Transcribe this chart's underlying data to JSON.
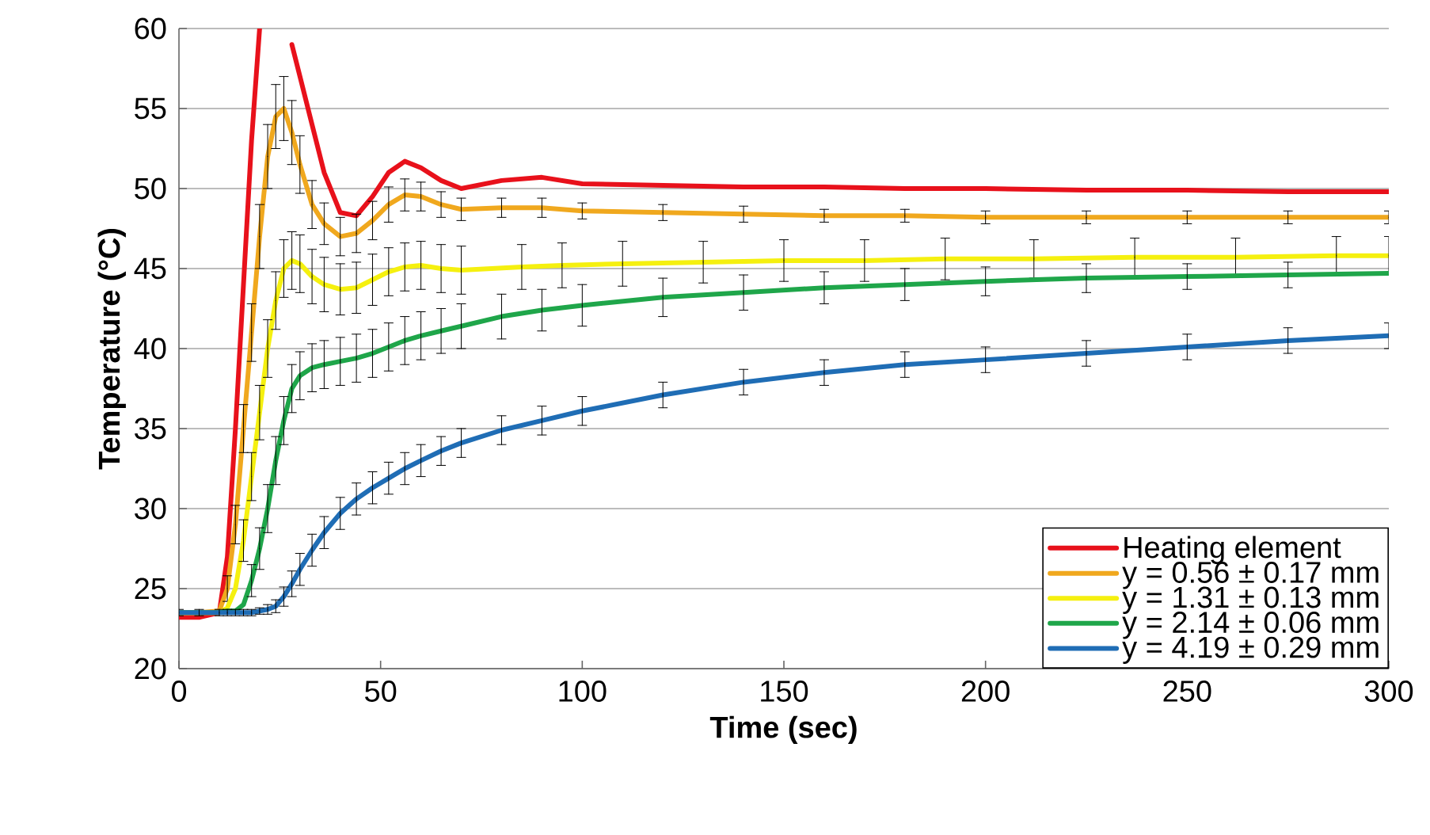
{
  "chart_data": {
    "type": "line",
    "xlabel": "Time (sec)",
    "ylabel": "Temperature (°C)",
    "x": [
      0,
      5,
      10,
      12,
      14,
      16,
      18,
      20,
      22,
      24,
      26,
      28,
      30,
      33,
      36,
      40,
      44,
      48,
      52,
      56,
      60,
      65,
      70,
      80,
      90,
      100,
      120,
      140,
      160,
      180,
      200,
      225,
      250,
      275,
      300
    ],
    "xlim": [
      0,
      300
    ],
    "xticks": [
      0,
      50,
      100,
      150,
      200,
      250,
      300
    ],
    "ylim": [
      20,
      60
    ],
    "yticks": [
      20,
      25,
      30,
      35,
      40,
      45,
      50,
      55,
      60
    ],
    "grid": "y",
    "legend": "bottom right",
    "marker": "none",
    "line_style": "solid",
    "series": [
      {
        "name": "Heating element",
        "color": "#e8111b",
        "values": [
          23.2,
          23.2,
          23.5,
          27,
          35,
          44,
          53,
          60,
          null,
          null,
          null,
          59,
          57,
          54,
          51,
          48.5,
          48.3,
          49.5,
          51,
          51.7,
          51.3,
          50.5,
          50,
          50.5,
          50.7,
          50.3,
          50.2,
          50.1,
          50.1,
          50,
          50,
          49.9,
          49.9,
          49.8,
          49.8
        ]
      },
      {
        "name": "y = 0.56 ± 0.17 mm",
        "color": "#f0a81e",
        "values": [
          23.5,
          23.5,
          23.6,
          25,
          29,
          35,
          41,
          47,
          52,
          54.5,
          55,
          53.5,
          51.5,
          49,
          47.8,
          47,
          47.2,
          48,
          49,
          49.6,
          49.5,
          49,
          48.7,
          48.8,
          48.8,
          48.6,
          48.5,
          48.4,
          48.3,
          48.3,
          48.2,
          48.2,
          48.2,
          48.2,
          48.2
        ],
        "errors": [
          null,
          null,
          null,
          0.8,
          1.2,
          1.5,
          1.8,
          2,
          2,
          2,
          2,
          2,
          1.8,
          1.5,
          1.3,
          1.2,
          1.2,
          1.2,
          1.1,
          1,
          0.9,
          0.8,
          0.7,
          0.6,
          0.6,
          0.5,
          0.5,
          0.5,
          0.4,
          0.4,
          0.4,
          0.4,
          0.4,
          0.4,
          0.4
        ]
      },
      {
        "name": "y = 1.31 ± 0.13 mm",
        "color": "#f5f00f",
        "x": [
          0,
          5,
          10,
          12,
          14,
          16,
          18,
          20,
          22,
          24,
          26,
          28,
          30,
          33,
          36,
          40,
          44,
          48,
          52,
          56,
          60,
          65,
          70,
          85,
          95,
          110,
          130,
          150,
          170,
          190,
          212,
          237,
          262,
          287,
          300
        ],
        "values": [
          23.5,
          23.5,
          23.5,
          23.8,
          25,
          28,
          32,
          36,
          40,
          43,
          45,
          45.5,
          45.3,
          44.5,
          44,
          43.7,
          43.8,
          44.3,
          44.8,
          45.1,
          45.2,
          45,
          44.9,
          45.1,
          45.2,
          45.3,
          45.4,
          45.5,
          45.5,
          45.6,
          45.6,
          45.7,
          45.7,
          45.8,
          45.8
        ],
        "errors": [
          null,
          null,
          null,
          null,
          null,
          1.3,
          1.5,
          1.7,
          1.8,
          1.8,
          1.8,
          1.8,
          1.8,
          1.7,
          1.7,
          1.6,
          1.6,
          1.6,
          1.5,
          1.5,
          1.5,
          1.5,
          1.5,
          1.4,
          1.4,
          1.4,
          1.3,
          1.3,
          1.3,
          1.3,
          1.2,
          1.2,
          1.2,
          1.2,
          1.2
        ]
      },
      {
        "name": "y = 2.14 ± 0.06 mm",
        "color": "#1fa64a",
        "values": [
          23.5,
          23.5,
          23.5,
          23.6,
          23.6,
          24,
          25.5,
          27.5,
          30,
          33,
          35.5,
          37.5,
          38.3,
          38.8,
          39,
          39.2,
          39.4,
          39.7,
          40.1,
          40.5,
          40.8,
          41.1,
          41.4,
          42,
          42.4,
          42.7,
          43.2,
          43.5,
          43.8,
          44,
          44.2,
          44.4,
          44.5,
          44.6,
          44.7
        ],
        "errors": [
          null,
          null,
          null,
          null,
          null,
          null,
          1,
          1.3,
          1.5,
          1.5,
          1.5,
          1.5,
          1.5,
          1.5,
          1.5,
          1.5,
          1.5,
          1.5,
          1.5,
          1.5,
          1.5,
          1.4,
          1.4,
          1.4,
          1.3,
          1.3,
          1.2,
          1.1,
          1,
          1,
          0.9,
          0.9,
          0.8,
          0.8,
          null
        ]
      },
      {
        "name": "y = 4.19 ± 0.29 mm",
        "color": "#1f6db5",
        "values": [
          23.5,
          23.5,
          23.5,
          23.5,
          23.5,
          23.5,
          23.5,
          23.6,
          23.7,
          23.9,
          24.5,
          25.3,
          26.2,
          27.4,
          28.5,
          29.7,
          30.6,
          31.3,
          31.9,
          32.5,
          33,
          33.6,
          34.1,
          34.9,
          35.5,
          36.1,
          37.1,
          37.9,
          38.5,
          39,
          39.3,
          39.7,
          40.1,
          40.5,
          40.8
        ],
        "errors": [
          0.2,
          0.2,
          0.2,
          0.2,
          0.2,
          0.2,
          0.2,
          0.2,
          0.3,
          0.4,
          0.6,
          0.8,
          1,
          1,
          1,
          1,
          1,
          1,
          1,
          1,
          1,
          0.9,
          0.9,
          0.9,
          0.9,
          0.9,
          0.8,
          0.8,
          0.8,
          0.8,
          0.8,
          0.8,
          0.8,
          0.8,
          0.8
        ]
      }
    ]
  }
}
